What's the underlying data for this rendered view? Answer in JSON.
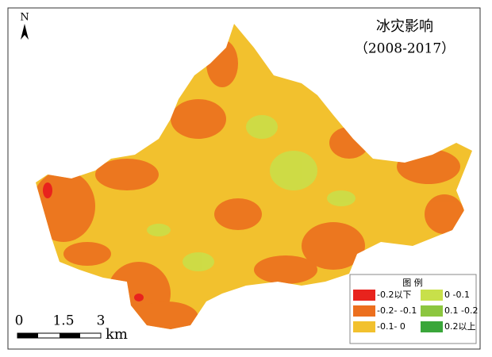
{
  "title": "冰灾影响",
  "subtitle": "（2008-2017）",
  "north": "N",
  "legend": {
    "title": "图 例",
    "items": [
      {
        "label": "-0.2以下",
        "color": "#e8231d"
      },
      {
        "label": "0 -0.1",
        "color": "#c8e04a"
      },
      {
        "label": "-0.2- -0.1",
        "color": "#ec6f1e"
      },
      {
        "label": "0.1 -0.2",
        "color": "#8cc63f"
      },
      {
        "label": "-0.1- 0",
        "color": "#f2c12e"
      },
      {
        "label": "0.2以上",
        "color": "#3aa63a"
      }
    ]
  },
  "scale_bar": {
    "labels": [
      "0",
      "1.5",
      "3"
    ],
    "unit": "km"
  }
}
